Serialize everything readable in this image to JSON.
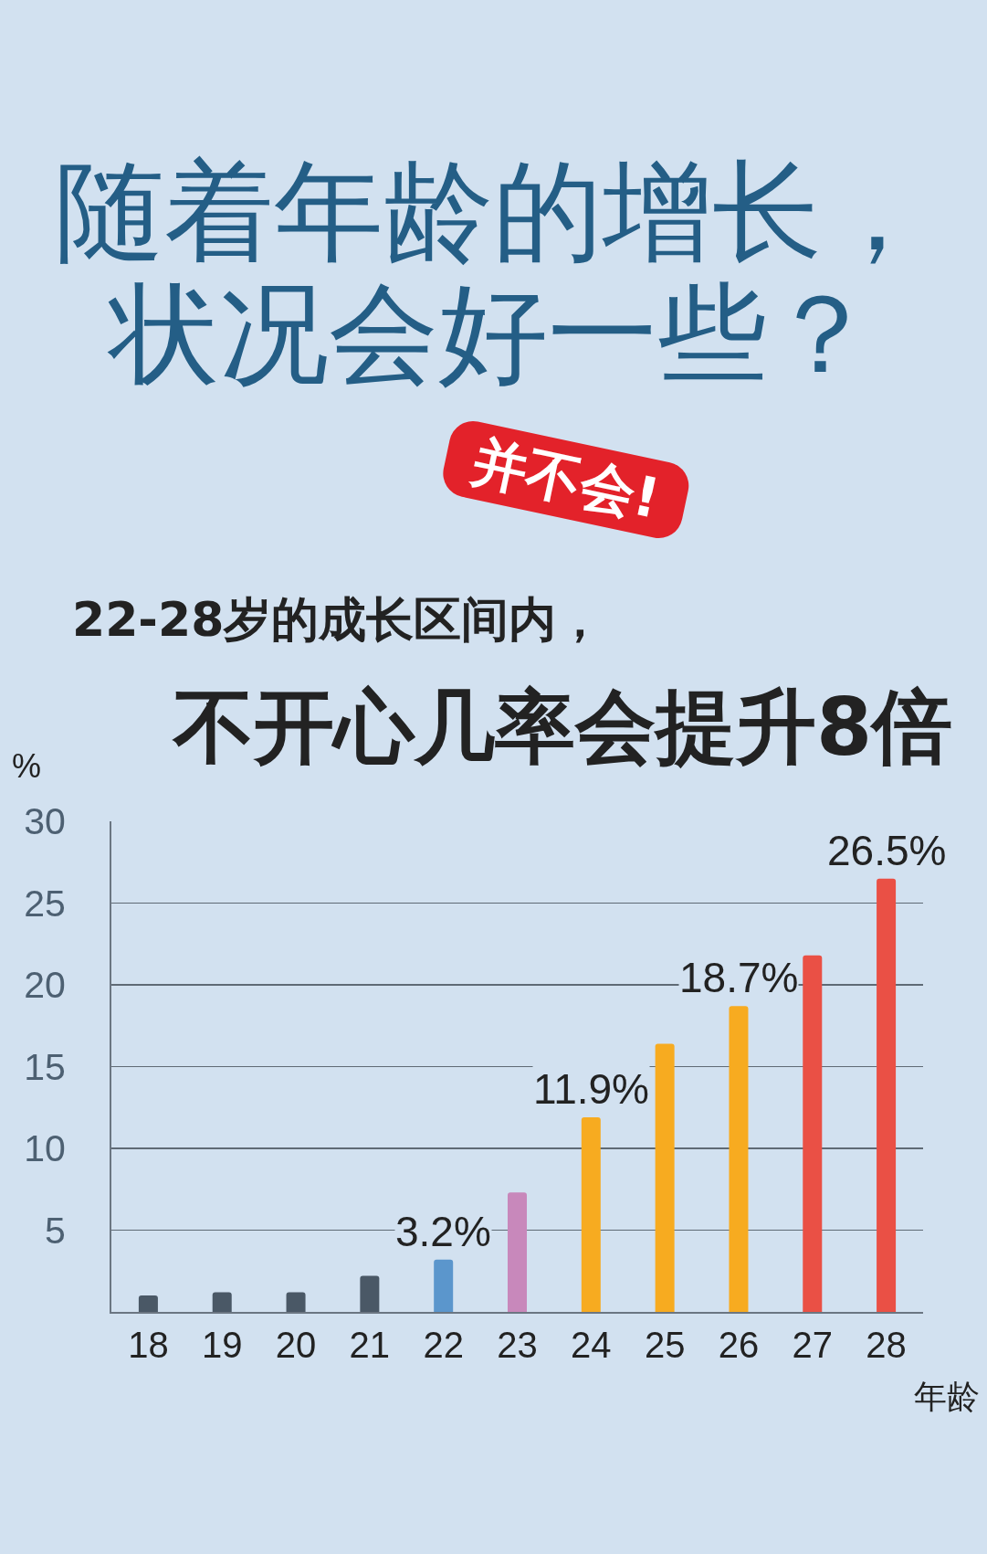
{
  "chart_data": {
    "type": "bar",
    "title": "随着年龄的增长，状况会好一些？",
    "annotations": [
      "并不会!",
      "不开心几率会提升8倍"
    ],
    "subtitle": "22-28岁的成长区间内，",
    "xlabel": "年龄",
    "ylabel": "%",
    "categories": [
      "18",
      "19",
      "20",
      "21",
      "22",
      "23",
      "24",
      "25",
      "26",
      "27",
      "28"
    ],
    "values": [
      1.0,
      1.2,
      1.2,
      2.2,
      3.2,
      7.3,
      11.9,
      16.4,
      18.7,
      21.8,
      26.5
    ],
    "colors": [
      "#4a5866",
      "#4a5866",
      "#4a5866",
      "#4a5866",
      "#5b96cc",
      "#c888bb",
      "#f7ab20",
      "#f7ab20",
      "#f7ab20",
      "#ea5045",
      "#ea5045"
    ],
    "value_labels": [
      null,
      null,
      null,
      null,
      "3.2%",
      null,
      "11.9%",
      null,
      "18.7%",
      null,
      "26.5%"
    ],
    "ylim": [
      0,
      30
    ],
    "yticks": [
      5,
      10,
      15,
      20,
      25,
      30
    ],
    "grid": "y"
  }
}
